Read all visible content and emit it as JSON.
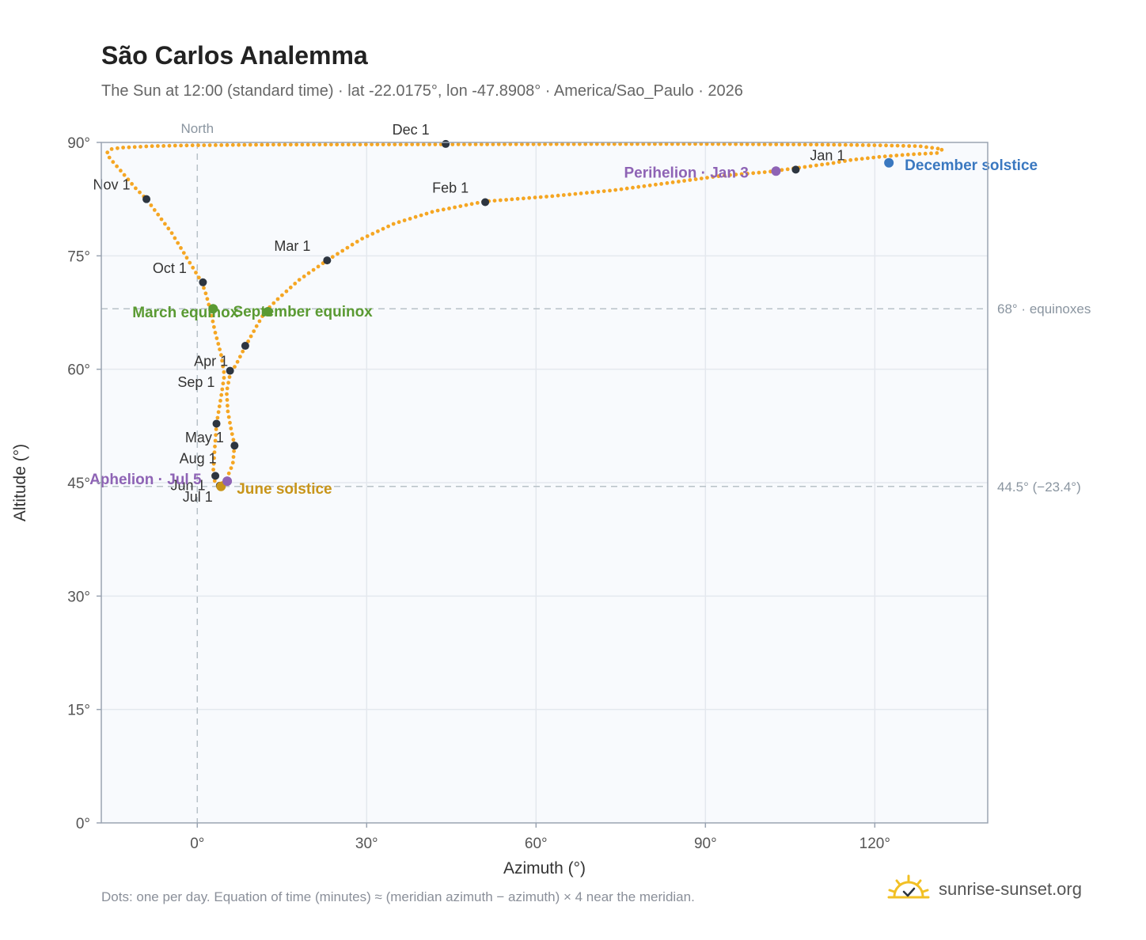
{
  "header": {
    "title": "São Carlos Analemma",
    "subtitle": "The Sun at 12:00 (standard time) · lat -22.0175°, lon -47.8908° · America/Sao_Paulo · 2026"
  },
  "footer": {
    "note": "Dots: one per day. Equation of time (minutes) ≈ (meridian azimuth − azimuth) × 4 near the meridian.",
    "brand": "sunrise-sunset.org"
  },
  "colors": {
    "curve": "#f5a623",
    "month_marker": "#2d3540",
    "equinox": "#5a9a32",
    "june_solstice": "#c8951a",
    "december_solstice": "#3a78c0",
    "apsis": "#8e63b5",
    "plot_bg": "#f8fafd",
    "grid": "#e4e8ee",
    "frame": "#9aa4b2",
    "ref_line": "#b8c2c8",
    "brand_sun": "#f2c025"
  },
  "chart_data": {
    "type": "scatter",
    "title": "São Carlos Analemma",
    "xlabel": "Azimuth (°)",
    "ylabel": "Altitude (°)",
    "xlim": [
      -17,
      140
    ],
    "ylim": [
      0,
      90
    ],
    "x_ticks": [
      0,
      30,
      60,
      90,
      120
    ],
    "x_tick_labels": [
      "0°",
      "30°",
      "60°",
      "90°",
      "120°"
    ],
    "y_ticks": [
      0,
      15,
      30,
      45,
      60,
      75,
      90
    ],
    "y_tick_labels": [
      "0°",
      "15°",
      "30°",
      "45°",
      "60°",
      "75°",
      "90°"
    ],
    "grid": true,
    "north_line": {
      "x": 0,
      "label": "North"
    },
    "reference_lines": [
      {
        "y": 68,
        "label": "68° · equinoxes"
      },
      {
        "y": 44.5,
        "label": "44.5° (−23.4°)"
      }
    ],
    "analemma_path": [
      [
        131,
        88.6
      ],
      [
        126,
        88.4
      ],
      [
        121,
        88.1
      ],
      [
        116,
        87.7
      ],
      [
        112,
        87.2
      ],
      [
        107,
        86.7
      ],
      [
        101,
        86.1
      ],
      [
        93,
        85.6
      ],
      [
        83,
        84.6
      ],
      [
        74,
        83.7
      ],
      [
        63,
        82.9
      ],
      [
        51,
        82.2
      ],
      [
        42,
        80.9
      ],
      [
        35,
        79.3
      ],
      [
        29,
        77.2
      ],
      [
        23,
        74.4
      ],
      [
        18,
        71.8
      ],
      [
        14,
        69.1
      ],
      [
        12,
        67.6
      ],
      [
        10.5,
        65.7
      ],
      [
        8.5,
        63.0
      ],
      [
        7.0,
        60.8
      ],
      [
        5.8,
        59.3
      ],
      [
        5.2,
        57.0
      ],
      [
        5.4,
        54.5
      ],
      [
        6.0,
        52.0
      ],
      [
        6.6,
        50.0
      ],
      [
        6.3,
        47.5
      ],
      [
        5.2,
        45.5
      ],
      [
        4.0,
        44.6
      ],
      [
        3.2,
        44.9
      ],
      [
        2.8,
        46.1
      ],
      [
        3.0,
        48.5
      ],
      [
        3.4,
        52.7
      ],
      [
        4.2,
        56.3
      ],
      [
        4.8,
        59.2
      ],
      [
        4.2,
        62.0
      ],
      [
        3.2,
        64.8
      ],
      [
        2.4,
        67.5
      ],
      [
        1.6,
        69.8
      ],
      [
        0.8,
        71.5
      ],
      [
        -1.5,
        74.3
      ],
      [
        -4.5,
        78.0
      ],
      [
        -7.5,
        81.0
      ],
      [
        -9.0,
        82.5
      ],
      [
        -11.0,
        84.0
      ],
      [
        -13.5,
        86.2
      ],
      [
        -15.5,
        87.9
      ],
      [
        -16.0,
        88.6
      ],
      [
        -15.4,
        89.1
      ],
      [
        -13.5,
        89.3
      ],
      [
        -8.5,
        89.5
      ],
      [
        -2.5,
        89.6
      ],
      [
        12.0,
        89.7
      ],
      [
        88.5,
        89.8
      ],
      [
        112,
        89.7
      ],
      [
        122,
        89.6
      ],
      [
        128,
        89.5
      ],
      [
        132,
        89.1
      ],
      [
        131,
        88.6
      ]
    ],
    "month_markers": [
      {
        "label": "Jan 1",
        "x": 106,
        "y": 86.4
      },
      {
        "label": "Feb 1",
        "x": 51,
        "y": 82.1
      },
      {
        "label": "Mar 1",
        "x": 23,
        "y": 74.4
      },
      {
        "label": "Apr 1",
        "x": 5.8,
        "y": 59.8
      },
      {
        "label": "May 1",
        "x": 6.6,
        "y": 49.9
      },
      {
        "label": "Jun 1",
        "x": 3.4,
        "y": 52.8
      },
      {
        "label": "Jul 1",
        "x": 4.0,
        "y": 44.6
      },
      {
        "label": "Aug 1",
        "x": 3.2,
        "y": 45.9
      },
      {
        "label": "Sep 1",
        "x": 8.5,
        "y": 63.1
      },
      {
        "label": "Oct 1",
        "x": 1.0,
        "y": 71.5
      },
      {
        "label": "Nov 1",
        "x": -9.0,
        "y": 82.5
      },
      {
        "label": "Dec 1",
        "x": 44.0,
        "y": 89.8
      }
    ],
    "events": [
      {
        "label": "March equinox",
        "x": 2.8,
        "y": 68.0,
        "color_key": "equinox"
      },
      {
        "label": "September equinox",
        "x": 12.5,
        "y": 67.6,
        "color_key": "equinox"
      },
      {
        "label": "June solstice",
        "x": 4.2,
        "y": 44.5,
        "color_key": "june_solstice"
      },
      {
        "label": "December solstice",
        "x": 122.5,
        "y": 87.3,
        "color_key": "december_solstice"
      },
      {
        "label": "Perihelion · Jan 3",
        "x": 102.5,
        "y": 86.2,
        "color_key": "apsis"
      },
      {
        "label": "Aphelion · Jul 5",
        "x": 5.3,
        "y": 45.2,
        "color_key": "apsis"
      }
    ]
  }
}
